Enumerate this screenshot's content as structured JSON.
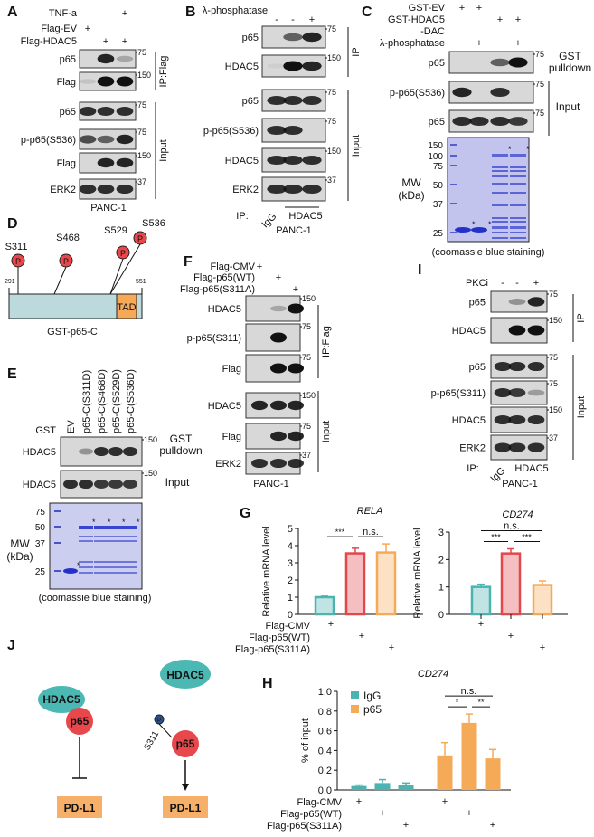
{
  "A": {
    "letter": "A",
    "conditions": [
      {
        "label": "TNF-a",
        "signs": [
          "",
          "",
          "+"
        ]
      },
      {
        "label": "Flag-EV",
        "signs": [
          "+",
          "",
          ""
        ]
      },
      {
        "label": "Flag-HDAC5",
        "signs": [
          "",
          "+",
          "+"
        ]
      }
    ],
    "blots": [
      {
        "label": "p65",
        "marker": "75",
        "bands": [
          0,
          0.9,
          0.25
        ]
      },
      {
        "label": "Flag",
        "marker": "150",
        "bands": [
          0.1,
          1,
          1
        ]
      },
      {
        "label": "p65",
        "marker": "75",
        "bands": [
          0.85,
          0.85,
          0.85
        ]
      },
      {
        "label": "p-p65(S536)",
        "marker": "75",
        "bands": [
          0.7,
          0.6,
          0.9
        ]
      },
      {
        "label": "Flag",
        "marker": "150",
        "bands": [
          0,
          0.9,
          0.9
        ]
      },
      {
        "label": "ERK2",
        "marker": "37",
        "bands": [
          0.85,
          0.85,
          0.85
        ]
      }
    ],
    "groups": [
      "IP:Flag",
      "Input"
    ],
    "cell": "PANC-1"
  },
  "B": {
    "letter": "B",
    "conditions": [
      {
        "label": "λ-phosphatase",
        "signs": [
          "-",
          "-",
          "+"
        ]
      }
    ],
    "blots": [
      {
        "label": "p65",
        "marker": "75",
        "bands": [
          0,
          0.6,
          0.9
        ]
      },
      {
        "label": "HDAC5",
        "marker": "150",
        "bands": [
          0.05,
          1,
          0.9
        ]
      },
      {
        "label": "p65",
        "marker": "75",
        "bands": [
          0.85,
          0.85,
          0.85
        ]
      },
      {
        "label": "p-p65(S536)",
        "marker": "75",
        "bands": [
          0.85,
          0.85,
          0
        ]
      },
      {
        "label": "HDAC5",
        "marker": "150",
        "bands": [
          0.85,
          0.85,
          0.85
        ]
      },
      {
        "label": "ERK2",
        "marker": "37",
        "bands": [
          0.85,
          0.85,
          0.85
        ]
      }
    ],
    "groups": [
      "IP",
      "Input"
    ],
    "ip_label": "IP:",
    "ip_lanes": [
      "IgG",
      "HDAC5"
    ],
    "cell": "PANC-1"
  },
  "C": {
    "letter": "C",
    "conditions": [
      {
        "label": "GST-EV",
        "signs": [
          "+",
          "+",
          "",
          ""
        ]
      },
      {
        "label": "GST-HDAC5",
        "signs": [
          "",
          "",
          "+",
          "+"
        ]
      },
      {
        "label": "-DAC",
        "signs": [
          "",
          "",
          "",
          ""
        ]
      },
      {
        "label": "λ-phosphatase",
        "signs": [
          "",
          "+",
          "",
          "+"
        ]
      }
    ],
    "blots": [
      {
        "label": "p65",
        "marker": "75",
        "bands": [
          0,
          0,
          0.6,
          1
        ]
      },
      {
        "label": "p-p65(S536)",
        "marker": "75",
        "bands": [
          0.9,
          0,
          0.85,
          0
        ]
      },
      {
        "label": "p65",
        "marker": "75",
        "bands": [
          0.85,
          0.85,
          0.85,
          0.8
        ]
      }
    ],
    "groups": [
      "GST pulldown",
      "Input"
    ],
    "gel": {
      "mw_title": "MW",
      "mw_unit": "(kDa)",
      "mw_markers": [
        "150",
        "100",
        "75",
        "50",
        "37",
        "25"
      ],
      "caption": "(coomassie blue staining)",
      "star": "*"
    }
  },
  "D": {
    "letter": "D",
    "start": "291",
    "end": "551",
    "domain": "TAD",
    "construct": "GST-p65-C",
    "sites": [
      "S311",
      "S468",
      "S529",
      "S536"
    ],
    "phospho_symbol": "P"
  },
  "E": {
    "letter": "E",
    "row_label": "GST",
    "lanes": [
      "EV",
      "p65-C(S311D)",
      "p65-C(S468D)",
      "p65-C(S529D)",
      "p65-C(S536D)"
    ],
    "blots": [
      {
        "label": "HDAC5",
        "marker": "150",
        "bands": [
          0,
          0.35,
          0.85,
          0.85,
          0.85
        ]
      },
      {
        "label": "HDAC5",
        "marker": "150",
        "bands": [
          0.85,
          0.85,
          0.8,
          0.8,
          0.8
        ]
      }
    ],
    "groups": [
      "GST pulldown",
      "Input"
    ],
    "gel": {
      "mw_title": "MW",
      "mw_unit": "(kDa)",
      "mw_markers": [
        "75",
        "50",
        "37",
        "25"
      ],
      "caption": "(coomassie blue staining)",
      "star": "*"
    }
  },
  "F": {
    "letter": "F",
    "conditions": [
      {
        "label": "Flag-CMV",
        "signs": [
          "+",
          "",
          ""
        ]
      },
      {
        "label": "Flag-p65(WT)",
        "signs": [
          "",
          "+",
          ""
        ]
      },
      {
        "label": "Flag-p65(S311A)",
        "signs": [
          "",
          "",
          "+"
        ]
      }
    ],
    "blots": [
      {
        "label": "HDAC5",
        "marker": "150",
        "bands": [
          0,
          0.25,
          1
        ]
      },
      {
        "label": "p-p65(S311)",
        "marker": "75",
        "bands": [
          0,
          1,
          0
        ]
      },
      {
        "label": "Flag",
        "marker": "75",
        "bands": [
          0,
          1,
          1
        ]
      },
      {
        "label": "HDAC5",
        "marker": "150",
        "bands": [
          0.9,
          0.9,
          0.9
        ]
      },
      {
        "label": "Flag",
        "marker": "75",
        "bands": [
          0,
          0.9,
          0.9
        ]
      },
      {
        "label": "ERK2",
        "marker": "37",
        "bands": [
          0.85,
          0.85,
          0.85
        ]
      }
    ],
    "groups": [
      "IP:Flag",
      "Input"
    ],
    "cell": "PANC-1"
  },
  "I": {
    "letter": "I",
    "conditions": [
      {
        "label": "PKCi",
        "signs": [
          "-",
          "-",
          "+"
        ]
      }
    ],
    "blots": [
      {
        "label": "p65",
        "marker": "75",
        "bands": [
          0,
          0.35,
          0.9
        ]
      },
      {
        "label": "HDAC5",
        "marker": "150",
        "bands": [
          0,
          1,
          1
        ]
      },
      {
        "label": "p65",
        "marker": "75",
        "bands": [
          0.85,
          0.85,
          0.85
        ]
      },
      {
        "label": "p-p65(S311)",
        "marker": "75",
        "bands": [
          0.85,
          0.8,
          0.3
        ]
      },
      {
        "label": "HDAC5",
        "marker": "150",
        "bands": [
          0.85,
          0.85,
          0.85
        ]
      },
      {
        "label": "ERK2",
        "marker": "37",
        "bands": [
          0.85,
          0.85,
          0.85
        ]
      }
    ],
    "groups": [
      "IP",
      "Input"
    ],
    "ip_label": "IP:",
    "ip_lanes": [
      "IgG",
      "HDAC5"
    ],
    "cell": "PANC-1"
  },
  "G": {
    "letter": "G",
    "conditions": [
      "Flag-CMV",
      "Flag-p65(WT)",
      "Flag-p65(S311A)"
    ],
    "sign": "+"
  },
  "H": {
    "letter": "H",
    "conditions": [
      "Flag-CMV",
      "Flag-p65(WT)",
      "Flag-p65(S311A)"
    ],
    "sign": "+"
  },
  "J": {
    "letter": "J",
    "left": {
      "hdac5": "HDAC5",
      "p65": "p65",
      "target": "PD-L1"
    },
    "right": {
      "hdac5": "HDAC5",
      "phospho": "P",
      "site": "S311",
      "p65": "p65",
      "target": "PD-L1"
    }
  },
  "colors": {
    "teal": "#4bb3b0",
    "red": "#e2474c",
    "orange": "#f5aa58",
    "coomassie": "#8f93de",
    "node_red": "#e8484b",
    "node_teal": "#4bb8b4",
    "target": "#f6b06a"
  },
  "chart_data": [
    {
      "panel": "G",
      "type": "bar",
      "title": "RELA",
      "ylabel": "Relative mRNA level",
      "ylim": [
        0,
        5
      ],
      "yticks": [
        "0",
        "1",
        "2",
        "3",
        "4",
        "5"
      ],
      "values": [
        1.0,
        3.55,
        3.6
      ],
      "errors": [
        0.06,
        0.3,
        0.5
      ],
      "sig": [
        {
          "from": 0,
          "to": 1,
          "label": "***"
        },
        {
          "from": 1,
          "to": 2,
          "label": "n.s."
        }
      ]
    },
    {
      "panel": "G",
      "type": "bar",
      "title": "CD274",
      "ylabel": "Relative mRNA level",
      "ylim": [
        0,
        3
      ],
      "yticks": [
        "0",
        "1",
        "2",
        "3"
      ],
      "values": [
        1.0,
        2.22,
        1.07
      ],
      "errors": [
        0.1,
        0.17,
        0.15
      ],
      "sig": [
        {
          "from": 0,
          "to": 1,
          "label": "***"
        },
        {
          "from": 1,
          "to": 2,
          "label": "***"
        },
        {
          "from": 0,
          "to": 2,
          "label": "n.s."
        }
      ]
    },
    {
      "panel": "H",
      "type": "bar",
      "title": "CD274",
      "ylabel": "% of input",
      "ylim": [
        0,
        1.0
      ],
      "yticks": [
        "0.0",
        "0.2",
        "0.4",
        "0.6",
        "0.8",
        "1.0"
      ],
      "legend": "top-left",
      "series": [
        {
          "name": "IgG",
          "values": [
            0.04,
            0.07,
            0.05
          ],
          "errors": [
            0.01,
            0.035,
            0.02
          ]
        },
        {
          "name": "p65",
          "values": [
            0.35,
            0.68,
            0.32
          ],
          "errors": [
            0.13,
            0.09,
            0.09
          ]
        }
      ],
      "sig": [
        {
          "from": 3,
          "to": 4,
          "label": "*"
        },
        {
          "from": 4,
          "to": 5,
          "label": "**"
        },
        {
          "from": 3,
          "to": 5,
          "label": "n.s."
        }
      ]
    }
  ]
}
